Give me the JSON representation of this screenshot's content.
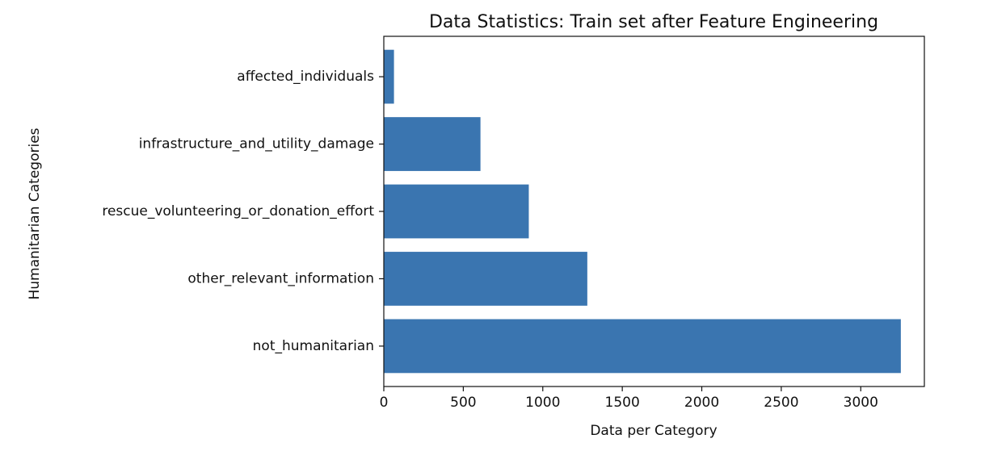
{
  "chart_data": {
    "type": "bar",
    "orientation": "horizontal",
    "title": "Data Statistics: Train set after Feature Engineering",
    "xlabel": "Data per Category",
    "ylabel": "Humanitarian Categories",
    "categories": [
      "not_humanitarian",
      "other_relevant_information",
      "rescue_volunteering_or_donation_effort",
      "infrastructure_and_utility_damage",
      "affected_individuals"
    ],
    "values": [
      3252,
      1280,
      912,
      608,
      64
    ],
    "xlim": [
      0,
      3400
    ],
    "xticks": [
      0,
      500,
      1000,
      1500,
      2000,
      2500,
      3000
    ],
    "bar_color": "#3a75b0",
    "grid": false,
    "legend": "none"
  }
}
